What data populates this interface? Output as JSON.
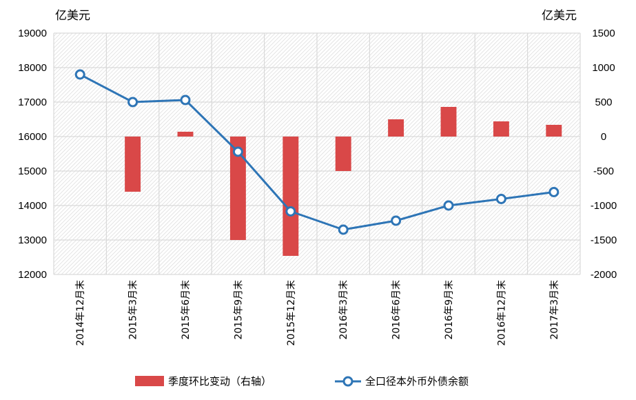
{
  "chart_data": {
    "type": "bar+line",
    "left_unit": "亿美元",
    "right_unit": "亿美元",
    "categories": [
      "2014年12月末",
      "2015年3月末",
      "2015年6月末",
      "2015年9月末",
      "2015年12月末",
      "2016年3月末",
      "2016年6月末",
      "2016年9月末",
      "2016年12月末",
      "2017年3月末"
    ],
    "left_axis": {
      "min": 12000,
      "max": 19000,
      "step": 1000,
      "ticks": [
        "12000",
        "13000",
        "14000",
        "15000",
        "16000",
        "17000",
        "18000",
        "19000"
      ]
    },
    "right_axis": {
      "min": -2000,
      "max": 1500,
      "step": 500,
      "ticks": [
        "-2000",
        "-1500",
        "-1000",
        "-500",
        "0",
        "500",
        "1000",
        "1500"
      ]
    },
    "series": [
      {
        "name": "季度环比变动（右轴）",
        "type": "bar",
        "axis": "right",
        "color": "#d94848",
        "values": [
          null,
          -800,
          70,
          -1500,
          -1730,
          -500,
          250,
          430,
          220,
          170
        ]
      },
      {
        "name": "全口径本外币外债余额",
        "type": "line",
        "axis": "left",
        "color": "#2e75b6",
        "values": [
          17800,
          17000,
          17060,
          15560,
          13830,
          13300,
          13560,
          14000,
          14190,
          14390
        ]
      }
    ],
    "grid": true,
    "legend_position": "bottom"
  }
}
